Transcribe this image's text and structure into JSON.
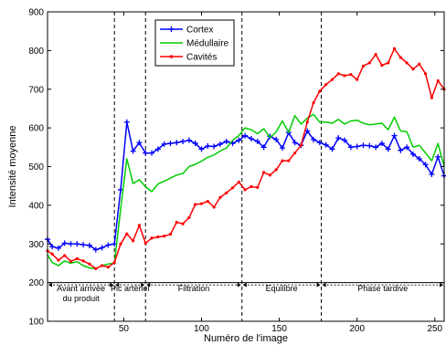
{
  "chart_data": {
    "type": "line",
    "title": "",
    "xlabel": "Numéro de l'image",
    "ylabel": "Intensité moyenne",
    "xlim": [
      1,
      256
    ],
    "ylim": [
      100,
      900
    ],
    "xticks": [
      50,
      100,
      150,
      200,
      250
    ],
    "yticks": [
      100,
      200,
      300,
      400,
      500,
      600,
      700,
      800,
      900
    ],
    "grid": false,
    "legend_position": "top-center",
    "phase_boundaries": [
      44,
      64,
      126,
      177
    ],
    "phase_band_bottom": 200,
    "phases": [
      {
        "label_lines": [
          "Avant arrivée",
          "du produit"
        ],
        "x_start": 1,
        "x_end": 44
      },
      {
        "label_lines": [
          "Pic artériel"
        ],
        "x_start": 44,
        "x_end": 64
      },
      {
        "label_lines": [
          "Filtration"
        ],
        "x_start": 64,
        "x_end": 126
      },
      {
        "label_lines": [
          "Equilibre"
        ],
        "x_start": 126,
        "x_end": 177
      },
      {
        "label_lines": [
          "Phase tardive"
        ],
        "x_start": 177,
        "x_end": 256
      }
    ],
    "series": [
      {
        "name": "Cortex",
        "color": "#0000ff",
        "marker": "plus",
        "x": [
          1,
          4,
          8,
          12,
          16,
          20,
          24,
          28,
          32,
          36,
          40,
          44,
          48,
          52,
          56,
          60,
          64,
          68,
          72,
          76,
          80,
          84,
          88,
          92,
          96,
          100,
          104,
          108,
          112,
          116,
          120,
          124,
          128,
          132,
          136,
          140,
          144,
          148,
          152,
          156,
          160,
          164,
          168,
          172,
          176,
          180,
          184,
          188,
          192,
          196,
          200,
          204,
          208,
          212,
          216,
          220,
          224,
          228,
          232,
          236,
          240,
          244,
          248,
          252,
          256
        ],
        "y": [
          312,
          293,
          289,
          302,
          300,
          300,
          298,
          296,
          285,
          290,
          297,
          300,
          440,
          615,
          540,
          562,
          535,
          535,
          545,
          558,
          560,
          562,
          565,
          568,
          560,
          545,
          553,
          552,
          558,
          565,
          560,
          568,
          580,
          572,
          565,
          550,
          578,
          570,
          548,
          588,
          562,
          555,
          592,
          570,
          562,
          556,
          545,
          574,
          568,
          550,
          552,
          555,
          554,
          550,
          560,
          545,
          580,
          542,
          550,
          532,
          520,
          505,
          480,
          525,
          476
        ]
      },
      {
        "name": "Médullaire",
        "color": "#00cc00",
        "marker": "none",
        "x": [
          1,
          4,
          8,
          12,
          16,
          20,
          24,
          28,
          32,
          36,
          40,
          44,
          48,
          52,
          56,
          60,
          64,
          68,
          72,
          76,
          80,
          84,
          88,
          92,
          96,
          100,
          104,
          108,
          112,
          116,
          120,
          124,
          128,
          132,
          136,
          140,
          144,
          148,
          152,
          156,
          160,
          164,
          168,
          172,
          176,
          180,
          184,
          188,
          192,
          196,
          200,
          204,
          208,
          212,
          216,
          220,
          224,
          228,
          232,
          236,
          240,
          244,
          248,
          252,
          256
        ],
        "y": [
          272,
          252,
          244,
          256,
          250,
          254,
          244,
          238,
          236,
          244,
          248,
          250,
          390,
          520,
          456,
          466,
          448,
          435,
          455,
          462,
          470,
          478,
          482,
          500,
          506,
          514,
          524,
          530,
          540,
          548,
          568,
          580,
          600,
          595,
          585,
          598,
          575,
          590,
          618,
          588,
          632,
          610,
          625,
          635,
          615,
          615,
          612,
          622,
          610,
          618,
          620,
          612,
          608,
          610,
          612,
          595,
          628,
          592,
          590,
          550,
          555,
          535,
          515,
          560,
          500
        ]
      },
      {
        "name": "Cavités",
        "color": "#ff0000",
        "marker": "dot",
        "x": [
          1,
          4,
          8,
          12,
          16,
          20,
          24,
          28,
          32,
          36,
          40,
          44,
          48,
          52,
          56,
          60,
          64,
          68,
          72,
          76,
          80,
          84,
          88,
          92,
          96,
          100,
          104,
          108,
          112,
          116,
          120,
          124,
          128,
          132,
          136,
          140,
          144,
          148,
          152,
          156,
          160,
          164,
          168,
          172,
          176,
          180,
          184,
          188,
          192,
          196,
          200,
          204,
          208,
          212,
          216,
          220,
          224,
          228,
          232,
          236,
          240,
          244,
          248,
          252,
          256
        ],
        "y": [
          282,
          274,
          258,
          270,
          255,
          262,
          256,
          248,
          236,
          244,
          240,
          252,
          300,
          326,
          308,
          348,
          302,
          315,
          318,
          320,
          325,
          356,
          352,
          368,
          402,
          404,
          410,
          395,
          420,
          432,
          445,
          460,
          440,
          448,
          446,
          485,
          478,
          492,
          515,
          515,
          535,
          555,
          615,
          665,
          695,
          712,
          725,
          740,
          735,
          738,
          725,
          760,
          768,
          790,
          762,
          768,
          805,
          782,
          768,
          752,
          765,
          740,
          678,
          722,
          700
        ]
      }
    ]
  }
}
